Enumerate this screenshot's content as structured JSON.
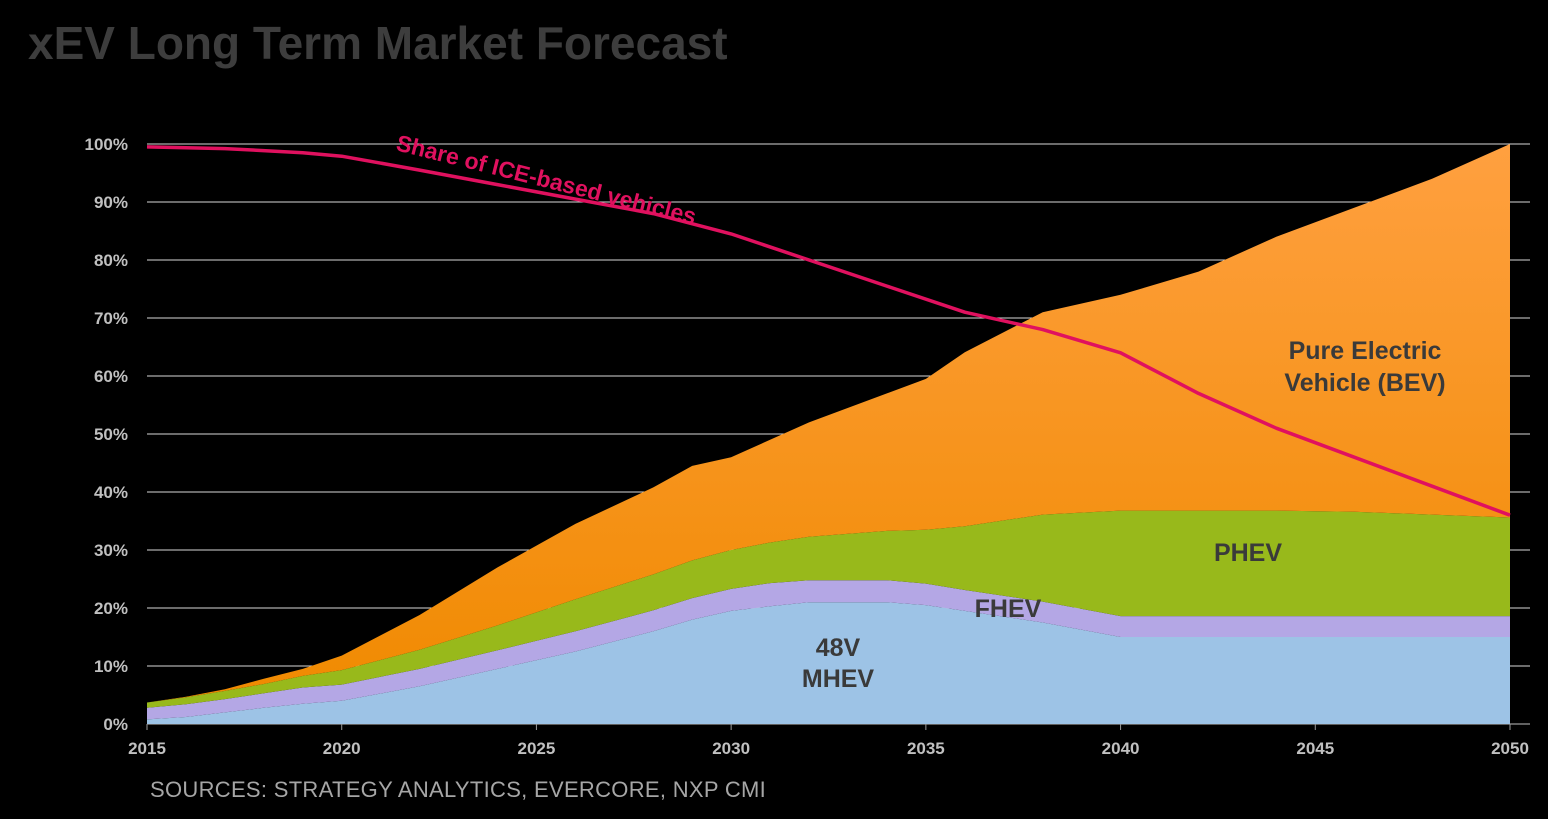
{
  "title": "xEV Long Term Market Forecast",
  "source": "SOURCES: STRATEGY ANALYTICS,  EVERCORE,  NXP CMI",
  "chart_data": {
    "type": "area",
    "stacked": true,
    "x": [
      2015,
      2016,
      2017,
      2018,
      2019,
      2020,
      2022,
      2024,
      2026,
      2028,
      2029,
      2030,
      2031,
      2032,
      2034,
      2035,
      2036,
      2038,
      2040,
      2042,
      2044,
      2046,
      2048,
      2050
    ],
    "xlim": [
      2015,
      2050
    ],
    "xticks": [
      "2015",
      "2020",
      "2025",
      "2030",
      "2035",
      "2040",
      "2045",
      "2050"
    ],
    "ylim": [
      0,
      100
    ],
    "yticks": [
      "0%",
      "10%",
      "20%",
      "30%",
      "40%",
      "50%",
      "60%",
      "70%",
      "80%",
      "90%",
      "100%"
    ],
    "grid": true,
    "series": [
      {
        "name": "48V MHEV",
        "color": "#9dc3e6",
        "values": [
          0.8,
          1.2,
          2.0,
          2.8,
          3.5,
          4.0,
          6.5,
          9.5,
          12.5,
          16.0,
          18.0,
          19.5,
          20.3,
          21.0,
          21.0,
          20.5,
          19.5,
          17.5,
          15.0,
          15.0,
          15.0,
          15.0,
          15.0,
          15.0
        ]
      },
      {
        "name": "FHEV",
        "color": "#b4a7e5",
        "values": [
          2.0,
          2.2,
          2.3,
          2.5,
          2.8,
          2.8,
          3.0,
          3.2,
          3.5,
          3.6,
          3.7,
          3.8,
          4.0,
          3.8,
          3.8,
          3.7,
          3.6,
          3.6,
          3.6,
          3.6,
          3.6,
          3.6,
          3.6,
          3.6
        ]
      },
      {
        "name": "PHEV",
        "color": "#98b91b",
        "values": [
          0.9,
          1.2,
          1.4,
          1.6,
          2.0,
          2.5,
          3.3,
          4.3,
          5.5,
          6.2,
          6.5,
          6.7,
          7.0,
          7.5,
          8.5,
          9.3,
          11.0,
          15.0,
          18.2,
          18.2,
          18.2,
          18.0,
          17.5,
          17.0
        ]
      },
      {
        "name": "Pure Electric Vehicle (BEV)",
        "color": "#ff9400",
        "values": [
          0.0,
          0.1,
          0.3,
          0.9,
          1.2,
          2.5,
          6.0,
          10.0,
          13.0,
          15.0,
          16.3,
          16.0,
          17.7,
          19.7,
          23.7,
          26.0,
          30.0,
          34.9,
          37.2,
          41.2,
          47.2,
          52.4,
          57.9,
          64.4
        ]
      }
    ],
    "line": {
      "name": "Share of ICE-based vehicles",
      "color": "#e0115f",
      "x": [
        2015,
        2017,
        2019,
        2020,
        2022,
        2024,
        2026,
        2028,
        2030,
        2032,
        2034,
        2036,
        2038,
        2040,
        2042,
        2044,
        2046,
        2048,
        2050
      ],
      "values": [
        99.5,
        99.2,
        98.5,
        97.9,
        95.5,
        93.0,
        90.5,
        88.0,
        84.5,
        80.0,
        75.5,
        71.0,
        68.0,
        64.0,
        57.0,
        51.0,
        46.0,
        41.0,
        36.0
      ]
    },
    "area_labels": {
      "mhev": [
        "48V",
        "MHEV"
      ],
      "fhev": "FHEV",
      "phev": "PHEV",
      "bev": [
        "Pure Electric",
        "Vehicle (BEV)"
      ]
    }
  }
}
